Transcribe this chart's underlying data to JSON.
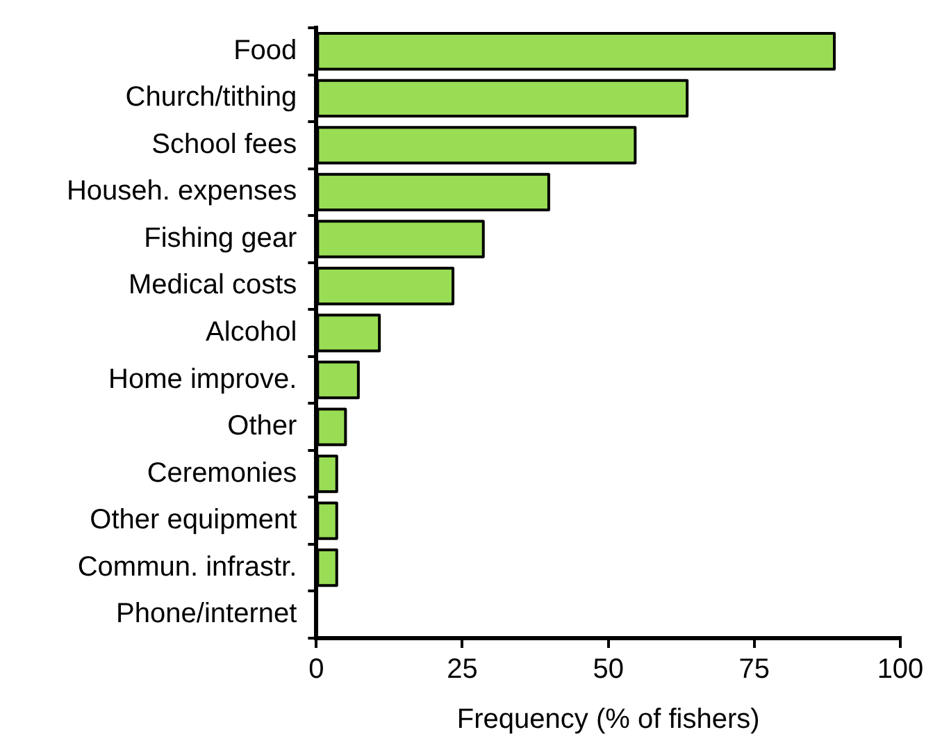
{
  "chart_data": {
    "type": "bar",
    "orientation": "horizontal",
    "xlabel": "Frequency (% of fishers)",
    "categories": [
      "Food",
      "Church/tithing",
      "School fees",
      "Househ. expenses",
      "Fishing gear",
      "Medical costs",
      "Alcohol",
      "Home improve.",
      "Other",
      "Ceremonies",
      "Other equipment",
      "Commun. infrastr.",
      "Phone/internet"
    ],
    "values": [
      88.7,
      63.5,
      54.6,
      39.8,
      28.6,
      23.4,
      10.8,
      7.2,
      5.0,
      3.5,
      3.5,
      3.5,
      0
    ],
    "color": "#99dd55",
    "xlim": [
      0,
      100
    ],
    "xticks": [
      0,
      25,
      50,
      75,
      100
    ],
    "grid": false,
    "legend": false
  }
}
